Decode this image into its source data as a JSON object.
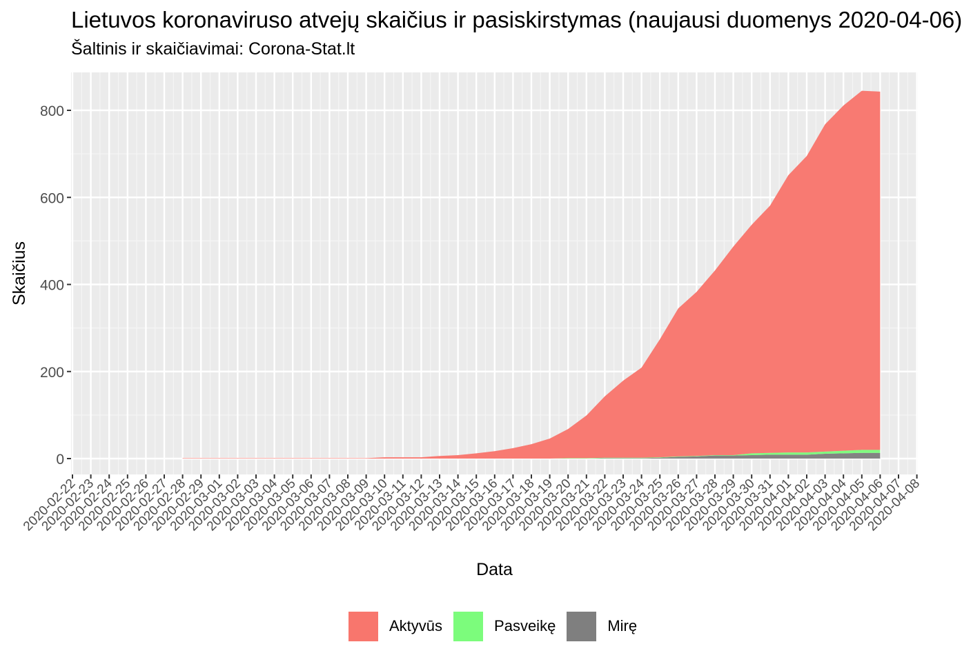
{
  "chart_data": {
    "type": "area",
    "title": "Lietuvos koronaviruso atvejų skaičius ir pasiskirstymas (naujausi duomenys 2020-04-06)",
    "subtitle": "Šaltinis ir skaičiavimai: Corona-Stat.lt",
    "xlabel": "Data",
    "ylabel": "Skaičius",
    "stacked": true,
    "grid": true,
    "legend_position": "bottom",
    "x_tick_labels": [
      "2020-02-22",
      "2020-02-23",
      "2020-02-24",
      "2020-02-25",
      "2020-02-26",
      "2020-02-27",
      "2020-02-28",
      "2020-02-29",
      "2020-03-01",
      "2020-03-02",
      "2020-03-03",
      "2020-03-04",
      "2020-03-05",
      "2020-03-06",
      "2020-03-07",
      "2020-03-08",
      "2020-03-09",
      "2020-03-10",
      "2020-03-11",
      "2020-03-12",
      "2020-03-13",
      "2020-03-14",
      "2020-03-15",
      "2020-03-16",
      "2020-03-17",
      "2020-03-18",
      "2020-03-19",
      "2020-03-20",
      "2020-03-21",
      "2020-03-22",
      "2020-03-23",
      "2020-03-24",
      "2020-03-25",
      "2020-03-26",
      "2020-03-27",
      "2020-03-28",
      "2020-03-29",
      "2020-03-30",
      "2020-03-31",
      "2020-04-01",
      "2020-04-02",
      "2020-04-03",
      "2020-04-04",
      "2020-04-05",
      "2020-04-06",
      "2020-04-07",
      "2020-04-08"
    ],
    "x": [
      "2020-02-28",
      "2020-02-29",
      "2020-03-01",
      "2020-03-02",
      "2020-03-03",
      "2020-03-04",
      "2020-03-05",
      "2020-03-06",
      "2020-03-07",
      "2020-03-08",
      "2020-03-09",
      "2020-03-10",
      "2020-03-11",
      "2020-03-12",
      "2020-03-13",
      "2020-03-14",
      "2020-03-15",
      "2020-03-16",
      "2020-03-17",
      "2020-03-18",
      "2020-03-19",
      "2020-03-20",
      "2020-03-21",
      "2020-03-22",
      "2020-03-23",
      "2020-03-24",
      "2020-03-25",
      "2020-03-26",
      "2020-03-27",
      "2020-03-28",
      "2020-03-29",
      "2020-03-30",
      "2020-03-31",
      "2020-04-01",
      "2020-04-02",
      "2020-04-03",
      "2020-04-04",
      "2020-04-05",
      "2020-04-06"
    ],
    "series": [
      {
        "name": "Mirę",
        "color": "#7f7f7f",
        "values": [
          0,
          0,
          0,
          0,
          0,
          0,
          0,
          0,
          0,
          0,
          0,
          0,
          0,
          0,
          0,
          0,
          0,
          0,
          0,
          0,
          0,
          0,
          0,
          1,
          1,
          1,
          2,
          4,
          5,
          7,
          7,
          8,
          9,
          9,
          9,
          11,
          12,
          13,
          13
        ]
      },
      {
        "name": "Pasveikę",
        "color": "#7cfc7c",
        "values": [
          0,
          0,
          0,
          0,
          0,
          0,
          0,
          0,
          0,
          0,
          0,
          0,
          0,
          0,
          0,
          0,
          0,
          0,
          0,
          0,
          0,
          1,
          1,
          1,
          1,
          1,
          1,
          1,
          1,
          1,
          1,
          4,
          4,
          5,
          5,
          5,
          6,
          7,
          7
        ]
      },
      {
        "name": "Aktyvūs",
        "color": "#f8766d",
        "values": [
          1,
          1,
          1,
          1,
          1,
          1,
          1,
          1,
          1,
          1,
          1,
          3,
          3,
          3,
          6,
          8,
          12,
          17,
          24,
          33,
          46,
          67,
          98,
          141,
          177,
          207,
          271,
          340,
          377,
          424,
          479,
          525,
          568,
          637,
          681,
          752,
          793,
          825,
          823
        ]
      }
    ],
    "ylim": [
      -20,
      880
    ],
    "y_ticks": [
      0,
      200,
      400,
      600,
      800
    ]
  }
}
